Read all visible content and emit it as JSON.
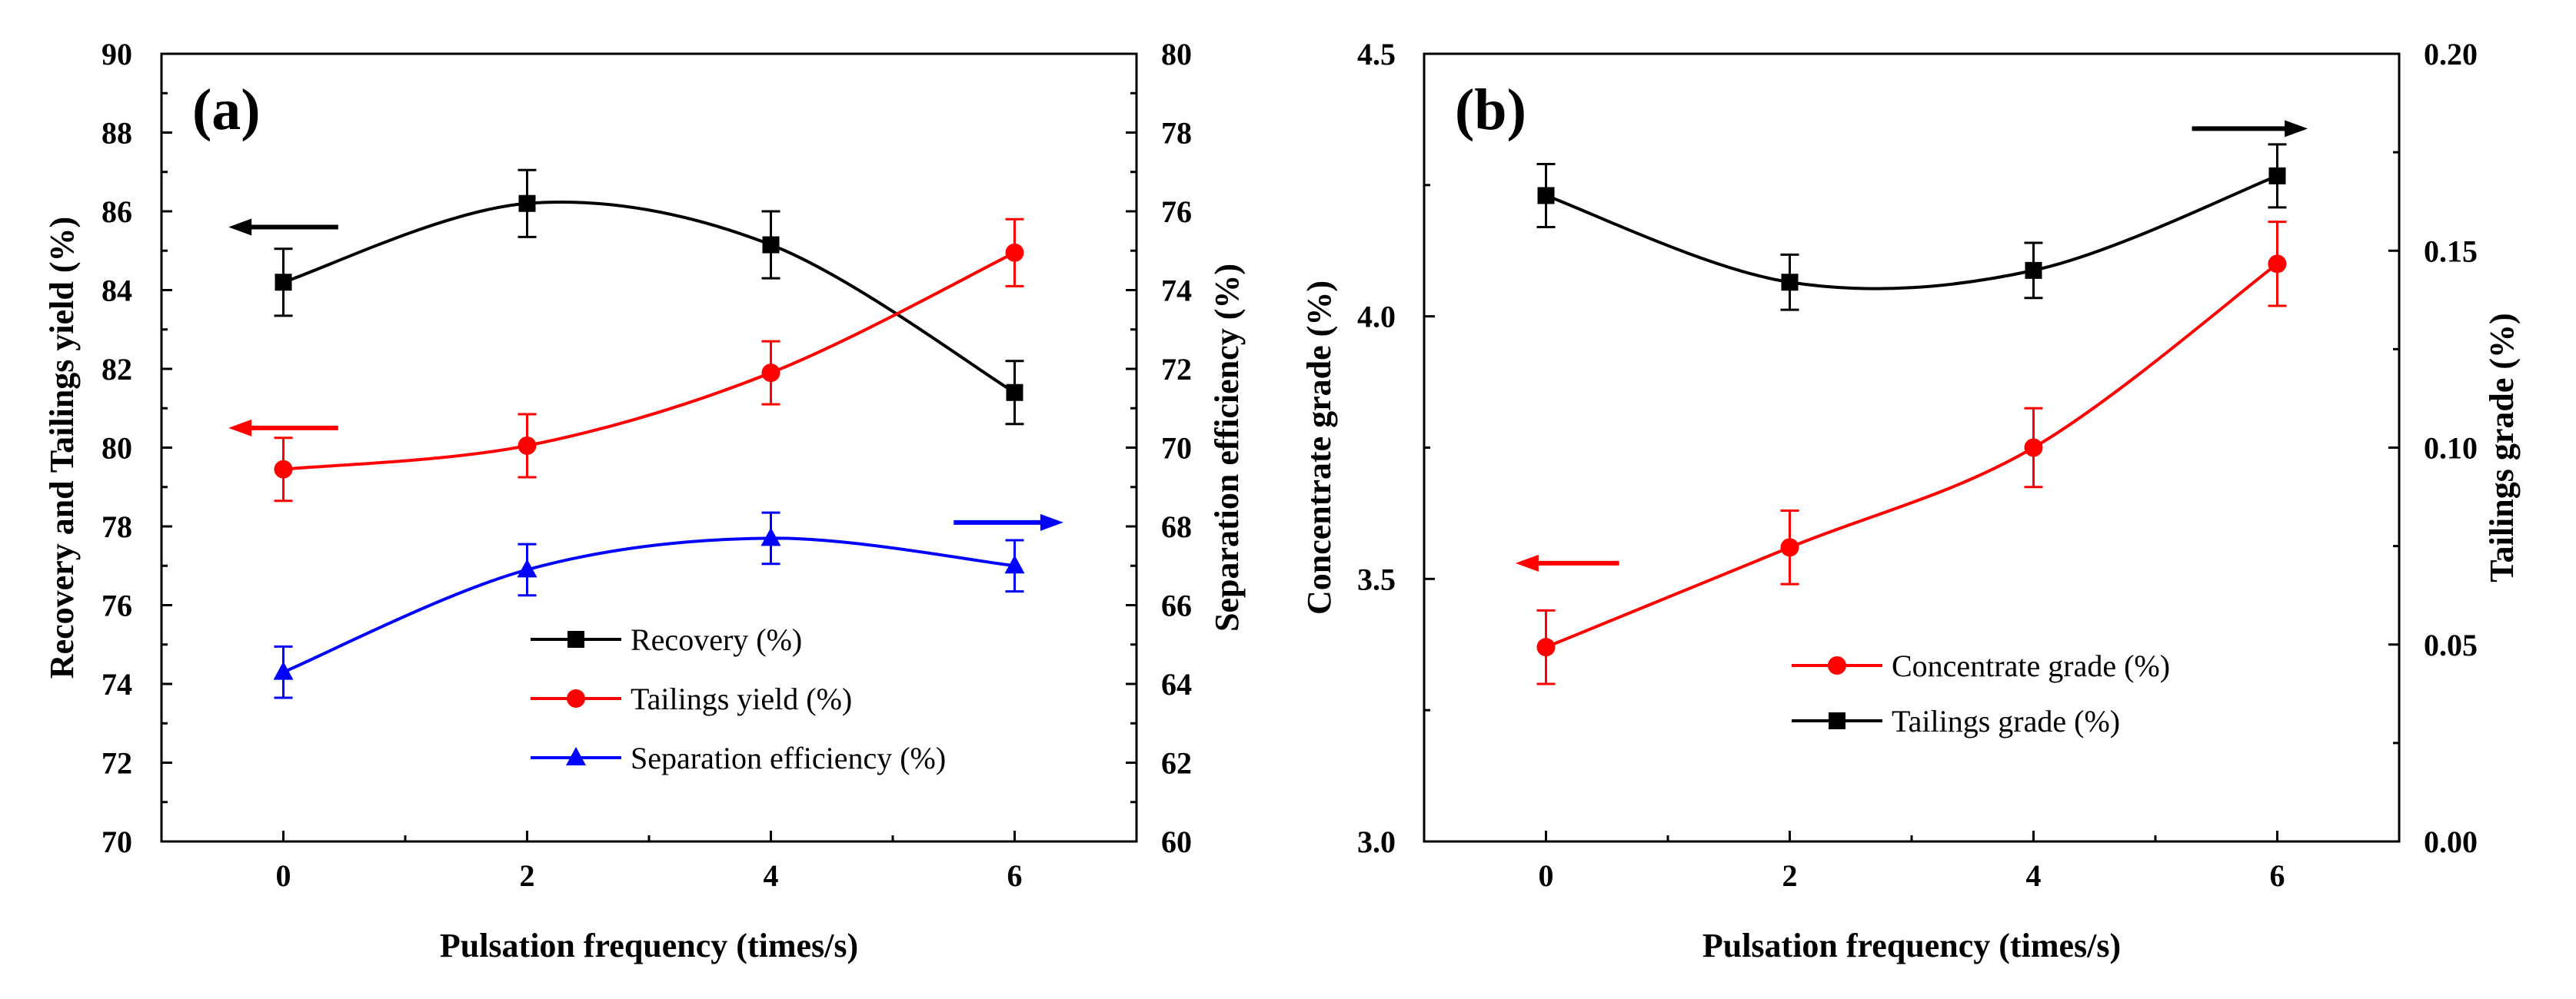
{
  "chart_data": [
    {
      "panel_label": "(a)",
      "type": "line",
      "xlabel": "Pulsation frequency (times/s)",
      "ylabel_left": "Recovery and Tailings yield (%)",
      "ylabel_right": "Separation efficiency (%)",
      "x_ticks": [
        "0",
        "2",
        "4",
        "6"
      ],
      "xlim": [
        -1,
        7
      ],
      "ylim_left": [
        70,
        90
      ],
      "ylim_right": [
        60,
        80
      ],
      "y_ticks_left": [
        "70",
        "72",
        "74",
        "76",
        "78",
        "80",
        "82",
        "84",
        "86",
        "88",
        "90"
      ],
      "y_ticks_right": [
        "60",
        "62",
        "64",
        "66",
        "68",
        "70",
        "72",
        "74",
        "76",
        "78",
        "80"
      ],
      "series": [
        {
          "name": "Recovery (%)",
          "axis": "left",
          "color": "#000000",
          "marker": "square",
          "x": [
            0,
            2,
            4,
            6
          ],
          "values": [
            84.2,
            86.2,
            85.15,
            81.4
          ],
          "errors": [
            0.85,
            0.85,
            0.85,
            0.8
          ]
        },
        {
          "name": "Tailings yield (%)",
          "axis": "left",
          "color": "#ff0000",
          "marker": "circle",
          "x": [
            0,
            2,
            4,
            6
          ],
          "values": [
            79.45,
            80.05,
            81.9,
            84.95
          ],
          "errors": [
            0.8,
            0.8,
            0.8,
            0.85
          ]
        },
        {
          "name": "Separation efficiency (%)",
          "axis": "right",
          "color": "#0000ff",
          "marker": "triangle",
          "x": [
            0,
            2,
            4,
            6
          ],
          "values": [
            64.3,
            66.9,
            67.7,
            67.0
          ],
          "errors": [
            0.65,
            0.65,
            0.65,
            0.65
          ]
        }
      ],
      "axis_arrows": [
        {
          "direction": "left",
          "color": "#000000",
          "axis": "left",
          "x": [
            -0.45,
            0.45
          ],
          "y": 85.6
        },
        {
          "direction": "left",
          "color": "#ff0000",
          "axis": "left",
          "x": [
            -0.45,
            0.45
          ],
          "y": 80.5
        },
        {
          "direction": "right",
          "color": "#0000ff",
          "axis": "right",
          "x": [
            5.5,
            6.4
          ],
          "y": 68.1
        }
      ],
      "legend_position": "bottom-right"
    },
    {
      "panel_label": "(b)",
      "type": "line",
      "xlabel": "Pulsation frequency (times/s)",
      "ylabel_left": "Concentrate grade (%)",
      "ylabel_right": "Tailings grade (%)",
      "x_ticks": [
        "0",
        "2",
        "4",
        "6"
      ],
      "xlim": [
        -1,
        7
      ],
      "ylim_left": [
        3.0,
        4.5
      ],
      "ylim_right": [
        0.0,
        0.2
      ],
      "y_ticks_left": [
        "3.0",
        "3.5",
        "4.0",
        "4.5"
      ],
      "y_ticks_right": [
        "0.00",
        "0.05",
        "0.10",
        "0.15",
        "0.20"
      ],
      "series": [
        {
          "name": "Concentrate grade (%)",
          "axis": "left",
          "color": "#ff0000",
          "marker": "circle",
          "x": [
            0,
            2,
            4,
            6
          ],
          "values": [
            3.37,
            3.56,
            3.75,
            4.1
          ],
          "errors": [
            0.07,
            0.07,
            0.075,
            0.08
          ]
        },
        {
          "name": "Tailings grade (%)",
          "axis": "right",
          "color": "#000000",
          "marker": "square",
          "x": [
            0,
            2,
            4,
            6
          ],
          "values": [
            0.164,
            0.142,
            0.145,
            0.169
          ],
          "errors": [
            0.008,
            0.007,
            0.007,
            0.008
          ]
        }
      ],
      "axis_arrows": [
        {
          "direction": "left",
          "color": "#ff0000",
          "axis": "left",
          "x": [
            -0.25,
            0.6
          ],
          "y": 3.53
        },
        {
          "direction": "right",
          "color": "#000000",
          "axis": "right",
          "x": [
            5.3,
            6.25
          ],
          "y": 0.181
        }
      ],
      "legend_position": "bottom-right"
    }
  ]
}
